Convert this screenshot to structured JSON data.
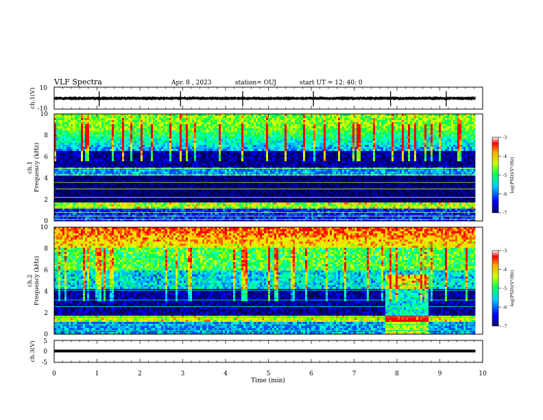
{
  "header": {
    "title": "VLF Spectra",
    "date": "Apr. 8  , 2023",
    "station": "station= OUJ",
    "start": "start  UT  =    12: 40: 0"
  },
  "chart_data": [
    {
      "type": "line",
      "name": "ch1-waveform",
      "ylabel": "ch.1(V)",
      "ylim": [
        -10,
        10
      ],
      "yticks": [
        "10",
        "-10"
      ],
      "baseline": 0,
      "spikes_min": [
        1.05,
        2.95,
        4.4,
        6.05,
        7.85,
        9.15
      ]
    },
    {
      "type": "heatmap",
      "name": "ch1-spectrogram",
      "ylabel": "ch.1\nFrequency (kHz)",
      "ylim": [
        0,
        10
      ],
      "yticks": [
        "0",
        "2",
        "4",
        "6",
        "8",
        "10"
      ],
      "colorbar_label": "log(PSD)(V²/Hz)",
      "colorbar_ticks": [
        "-3",
        "-4",
        "-5",
        "-6",
        "-7"
      ]
    },
    {
      "type": "heatmap",
      "name": "ch2-spectrogram",
      "ylabel": "ch.2\nFrequency (kHz)",
      "ylim": [
        0,
        10
      ],
      "yticks": [
        "0",
        "2",
        "4",
        "6",
        "8",
        "10"
      ],
      "colorbar_label": "log(PSD)(V²/Hz)",
      "colorbar_ticks": [
        "-3",
        "-4",
        "-5",
        "-6",
        "-7"
      ]
    },
    {
      "type": "line",
      "name": "ch3-waveform",
      "ylabel": "ch.3(V)",
      "ylim": [
        -5,
        5
      ],
      "yticks": [
        "5",
        "0",
        "-5"
      ],
      "baseline": 0
    }
  ],
  "xaxis": {
    "label": "Time  (min)",
    "ticks": [
      "0",
      "1",
      "2",
      "3",
      "4",
      "5",
      "6",
      "7",
      "8",
      "9",
      "10"
    ],
    "range": [
      0,
      10
    ],
    "data_end_min": 9.83
  },
  "colorscale": [
    "#00007a",
    "#0000ff",
    "#00ccff",
    "#00ff66",
    "#c8ff00",
    "#ffc000",
    "#ff0000",
    "#ffffff"
  ]
}
